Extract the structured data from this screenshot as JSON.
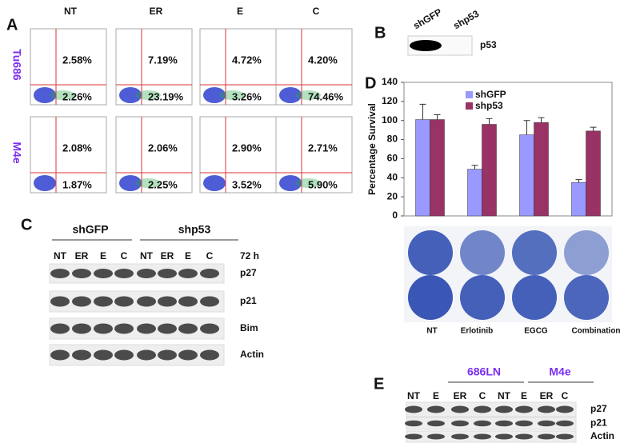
{
  "panel_a": {
    "letter": "A",
    "columns": [
      "NT",
      "ER",
      "E",
      "C"
    ],
    "rows": [
      {
        "label": "Tu686",
        "upper": [
          "2.58%",
          "7.19%",
          "4.72%",
          "4.20%"
        ],
        "lower": [
          "2.26%",
          "23.19%",
          "3.26%",
          "74.46%"
        ]
      },
      {
        "label": "M4e",
        "upper": [
          "2.08%",
          "2.06%",
          "2.90%",
          "2.71%"
        ],
        "lower": [
          "1.87%",
          "2.25%",
          "3.52%",
          "5.90%"
        ]
      }
    ]
  },
  "panel_b": {
    "letter": "B",
    "lanes": [
      "shGFP",
      "shp53"
    ],
    "blot": "p53"
  },
  "panel_c": {
    "letter": "C",
    "groups": [
      "shGFP",
      "shp53"
    ],
    "lanes": [
      "NT",
      "ER",
      "E",
      "C",
      "NT",
      "ER",
      "E",
      "C"
    ],
    "time": "72 h",
    "blots": [
      "p27",
      "p21",
      "Bim",
      "Actin"
    ]
  },
  "panel_d": {
    "letter": "D"
  },
  "chart_data": {
    "type": "bar",
    "y_label": "Percentage Survival",
    "categories": [
      "NT",
      "Erlotinib",
      "EGCG",
      "Combination"
    ],
    "series": [
      {
        "name": "shGFP",
        "color": "#9999ff",
        "values": [
          101,
          49,
          85,
          35
        ],
        "errors": [
          16,
          4,
          15,
          3
        ]
      },
      {
        "name": "shp53",
        "color": "#993366",
        "values": [
          101,
          96,
          98,
          89
        ],
        "errors": [
          5,
          6,
          5,
          4
        ]
      }
    ],
    "ylim": [
      0,
      140
    ],
    "yticks": [
      0,
      20,
      40,
      60,
      80,
      100,
      120,
      140
    ]
  },
  "panel_e": {
    "letter": "E",
    "groups": [
      "686LN",
      "M4e"
    ],
    "lanes": [
      "NT",
      "E",
      "ER",
      "C",
      "NT",
      "E",
      "ER",
      "C"
    ],
    "blots": [
      "p27",
      "p21",
      "Actin"
    ]
  }
}
